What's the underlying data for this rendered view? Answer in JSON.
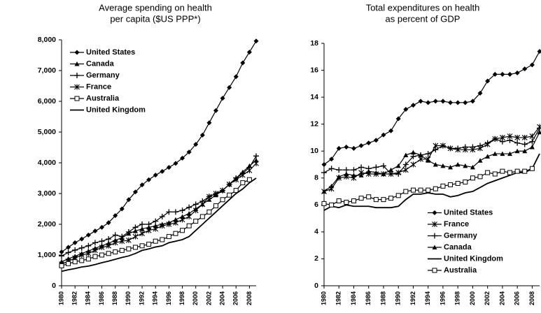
{
  "chart_data": [
    {
      "type": "line",
      "title": [
        "Average spending on health",
        "per capita ($US PPP*)"
      ],
      "x": [
        1980,
        1981,
        1982,
        1983,
        1984,
        1985,
        1986,
        1987,
        1988,
        1989,
        1990,
        1991,
        1992,
        1993,
        1994,
        1995,
        1996,
        1997,
        1998,
        1999,
        2000,
        2001,
        2002,
        2003,
        2004,
        2005,
        2006,
        2007,
        2008,
        2009
      ],
      "xlim": [
        1980,
        2009
      ],
      "xticks": [
        1980,
        1982,
        1984,
        1986,
        1988,
        1990,
        1992,
        1994,
        1996,
        1998,
        2000,
        2002,
        2004,
        2006,
        2008
      ],
      "ylim": [
        0,
        8000
      ],
      "yticks": [
        0,
        {
          "value": 1000,
          "label": "1,000"
        },
        {
          "value": 2000,
          "label": "2,000"
        },
        {
          "value": 3000,
          "label": "3,000"
        },
        {
          "value": 4000,
          "label": "4,000"
        },
        {
          "value": 5000,
          "label": "5,000"
        },
        {
          "value": 6000,
          "label": "6,000"
        },
        {
          "value": 7000,
          "label": "7,000"
        },
        {
          "value": 8000,
          "label": "8,000"
        }
      ],
      "legend": "upper left",
      "series": [
        {
          "name": "United States",
          "color": "#000000",
          "marker": "diamond",
          "values": [
            1100,
            1250,
            1400,
            1520,
            1650,
            1780,
            1900,
            2050,
            2280,
            2500,
            2800,
            3050,
            3280,
            3450,
            3600,
            3720,
            3850,
            3980,
            4150,
            4350,
            4600,
            4900,
            5300,
            5700,
            6100,
            6450,
            6800,
            7250,
            7600,
            7960
          ]
        },
        {
          "name": "Canada",
          "color": "#000000",
          "marker": "triangle",
          "values": [
            780,
            880,
            960,
            1050,
            1130,
            1220,
            1300,
            1380,
            1480,
            1560,
            1700,
            1780,
            1850,
            1900,
            1950,
            2000,
            2050,
            2150,
            2250,
            2350,
            2500,
            2650,
            2800,
            2950,
            3100,
            3300,
            3500,
            3700,
            3900,
            4080
          ]
        },
        {
          "name": "Germany",
          "color": "#000000",
          "marker": "plus",
          "values": [
            970,
            1080,
            1160,
            1230,
            1300,
            1400,
            1450,
            1520,
            1650,
            1600,
            1750,
            1900,
            2000,
            2000,
            2100,
            2250,
            2400,
            2400,
            2450,
            2550,
            2650,
            2750,
            2900,
            3000,
            3100,
            3300,
            3500,
            3650,
            3850,
            4220
          ]
        },
        {
          "name": "France",
          "color": "#000000",
          "marker": "asterisk",
          "values": [
            700,
            800,
            900,
            1000,
            1050,
            1150,
            1250,
            1300,
            1400,
            1450,
            1480,
            1600,
            1700,
            1800,
            1850,
            1950,
            2000,
            2050,
            2150,
            2250,
            2450,
            2650,
            2900,
            3000,
            3100,
            3300,
            3450,
            3600,
            3750,
            3980
          ]
        },
        {
          "name": "Australia",
          "color": "#000000",
          "marker": "square",
          "values": [
            650,
            720,
            780,
            820,
            870,
            950,
            1000,
            1050,
            1100,
            1150,
            1200,
            1250,
            1300,
            1350,
            1450,
            1500,
            1600,
            1700,
            1800,
            1950,
            2100,
            2250,
            2400,
            2600,
            2800,
            2950,
            3100,
            3350,
            3450,
            null
          ]
        },
        {
          "name": "United Kingdom",
          "color": "#000000",
          "marker": "none",
          "values": [
            470,
            520,
            560,
            610,
            640,
            690,
            750,
            800,
            860,
            920,
            970,
            1050,
            1150,
            1200,
            1260,
            1300,
            1400,
            1450,
            1500,
            1600,
            1800,
            2000,
            2200,
            2400,
            2600,
            2800,
            3000,
            3150,
            3350,
            3500
          ]
        }
      ]
    },
    {
      "type": "line",
      "title": [
        "Total expenditures on health",
        "as percent of GDP"
      ],
      "x": [
        1980,
        1981,
        1982,
        1983,
        1984,
        1985,
        1986,
        1987,
        1988,
        1989,
        1990,
        1991,
        1992,
        1993,
        1994,
        1995,
        1996,
        1997,
        1998,
        1999,
        2000,
        2001,
        2002,
        2003,
        2004,
        2005,
        2006,
        2007,
        2008,
        2009
      ],
      "xlim": [
        1980,
        2009
      ],
      "xticks": [
        1980,
        1982,
        1984,
        1986,
        1988,
        1990,
        1992,
        1994,
        1996,
        1998,
        2000,
        2002,
        2004,
        2006,
        2008
      ],
      "ylim": [
        0,
        18
      ],
      "yticks": [
        0,
        2,
        4,
        6,
        8,
        10,
        12,
        14,
        16,
        18
      ],
      "legend": "lower right",
      "series": [
        {
          "name": "United States",
          "color": "#000000",
          "marker": "diamond",
          "values": [
            9.0,
            9.4,
            10.2,
            10.3,
            10.2,
            10.4,
            10.6,
            10.8,
            11.2,
            11.5,
            12.4,
            13.1,
            13.4,
            13.7,
            13.6,
            13.7,
            13.7,
            13.6,
            13.6,
            13.6,
            13.7,
            14.3,
            15.2,
            15.7,
            15.7,
            15.7,
            15.8,
            16.1,
            16.4,
            17.4
          ]
        },
        {
          "name": "France",
          "color": "#000000",
          "marker": "asterisk",
          "values": [
            7.0,
            7.2,
            8.0,
            8.1,
            8.0,
            8.4,
            8.3,
            8.3,
            8.3,
            8.3,
            8.4,
            8.6,
            9.0,
            9.4,
            9.4,
            10.4,
            10.4,
            10.2,
            10.1,
            10.1,
            10.1,
            10.2,
            10.5,
            10.9,
            11.0,
            11.1,
            11.0,
            11.0,
            11.1,
            11.8
          ]
        },
        {
          "name": "Germany",
          "color": "#000000",
          "marker": "plus",
          "values": [
            8.4,
            8.7,
            8.6,
            8.6,
            8.6,
            8.8,
            8.7,
            8.8,
            8.9,
            8.3,
            8.3,
            9.0,
            9.6,
            9.7,
            9.8,
            10.1,
            10.4,
            10.2,
            10.2,
            10.3,
            10.3,
            10.4,
            10.6,
            10.9,
            10.7,
            10.8,
            10.6,
            10.5,
            10.7,
            11.7
          ]
        },
        {
          "name": "Canada",
          "color": "#000000",
          "marker": "triangle",
          "values": [
            7.0,
            7.4,
            8.1,
            8.3,
            8.2,
            8.2,
            8.5,
            8.4,
            8.3,
            8.6,
            8.9,
            9.7,
            9.9,
            9.7,
            9.3,
            9.0,
            8.9,
            8.8,
            9.0,
            8.9,
            8.8,
            9.3,
            9.6,
            9.8,
            9.8,
            9.8,
            10.0,
            10.0,
            10.3,
            11.4
          ]
        },
        {
          "name": "United Kingdom",
          "color": "#000000",
          "marker": "none",
          "values": [
            5.6,
            5.9,
            5.8,
            6.0,
            5.9,
            5.9,
            5.9,
            5.8,
            5.8,
            5.8,
            5.9,
            6.4,
            6.8,
            6.8,
            6.9,
            6.8,
            6.8,
            6.6,
            6.7,
            6.9,
            7.0,
            7.3,
            7.6,
            7.8,
            8.0,
            8.2,
            8.4,
            8.4,
            8.7,
            9.8
          ]
        },
        {
          "name": "Australia",
          "color": "#000000",
          "marker": "square",
          "values": [
            6.1,
            6.0,
            6.3,
            6.2,
            6.3,
            6.5,
            6.6,
            6.4,
            6.4,
            6.5,
            6.7,
            7.0,
            7.1,
            7.1,
            7.1,
            7.2,
            7.4,
            7.5,
            7.6,
            7.7,
            8.0,
            8.1,
            8.4,
            8.3,
            8.5,
            8.4,
            8.5,
            8.5,
            8.7,
            null
          ]
        }
      ]
    }
  ]
}
